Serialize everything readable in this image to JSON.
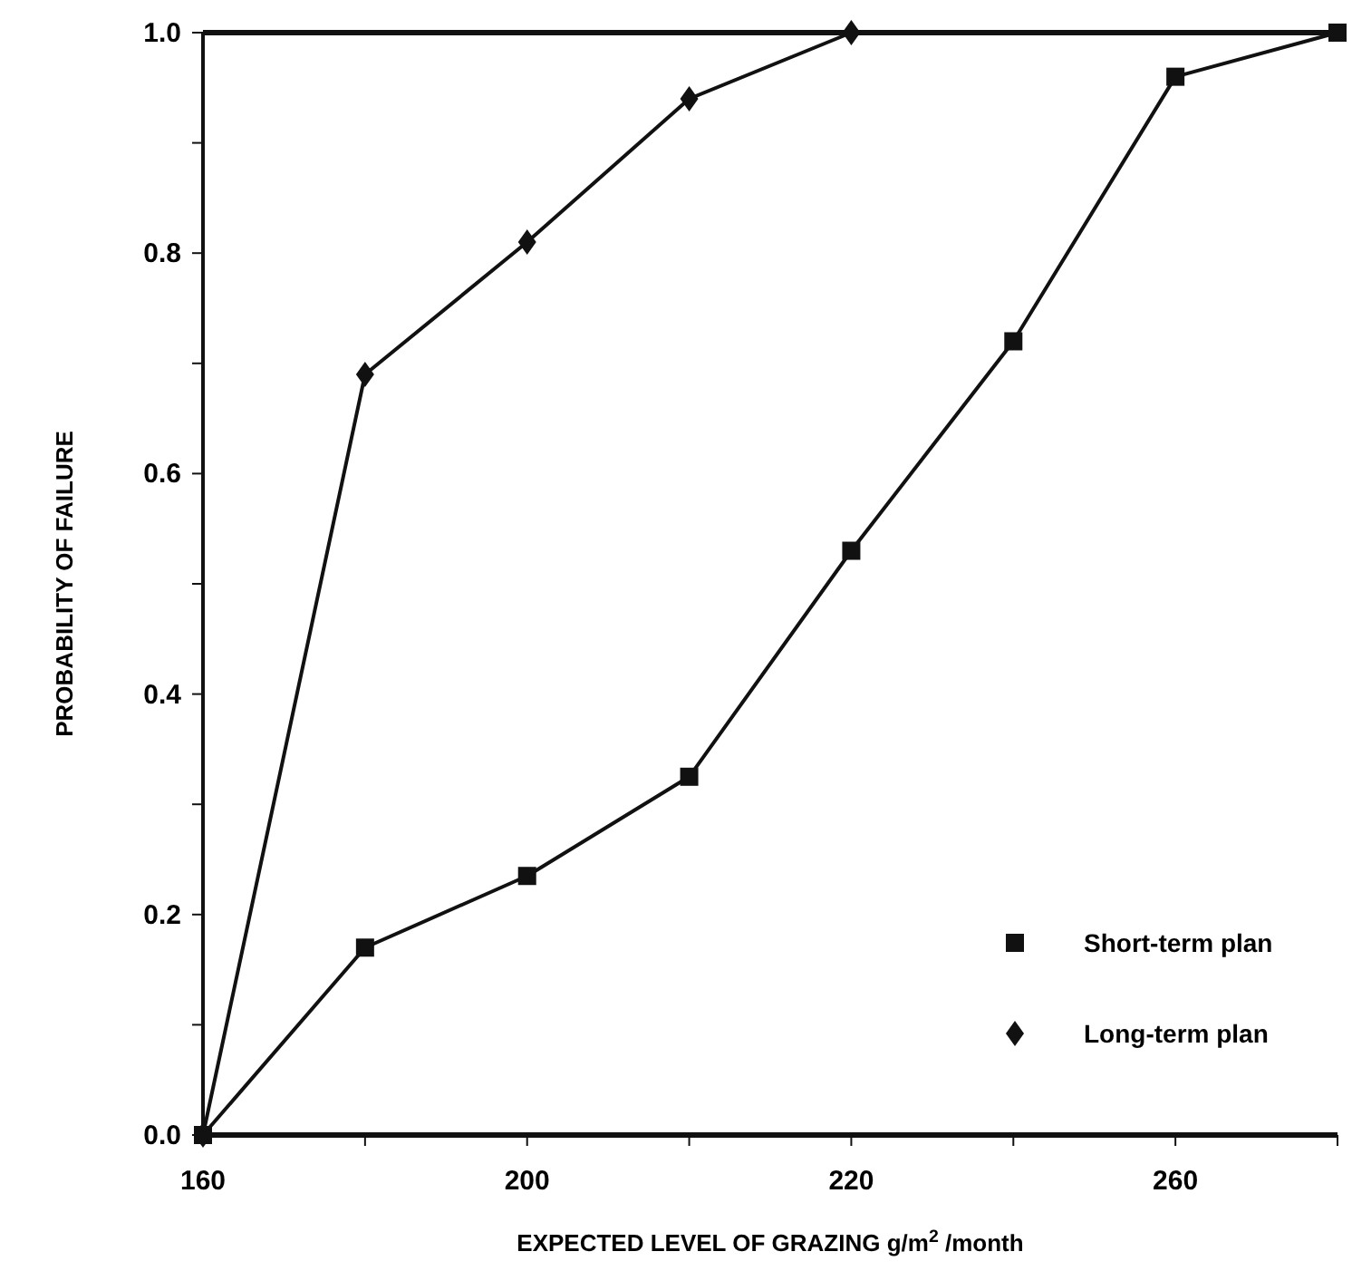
{
  "chart_data": {
    "type": "line",
    "xlabel": "EXPECTED LEVEL OF GRAZING  g/m$^{2}$ /month",
    "ylabel": "PROBABILITY OF FAILURE",
    "categories": [
      "160",
      null,
      "200",
      null,
      "220",
      null,
      "260",
      null
    ],
    "ylim": [
      0,
      1
    ],
    "yticks": [
      {
        "value": 0,
        "label": "0.0"
      },
      {
        "value": 0.1,
        "label": null
      },
      {
        "value": 0.2,
        "label": "0.2"
      },
      {
        "value": 0.3,
        "label": null
      },
      {
        "value": 0.4,
        "label": "0.4"
      },
      {
        "value": 0.5,
        "label": null
      },
      {
        "value": 0.6,
        "label": "0.6"
      },
      {
        "value": 0.7,
        "label": null
      },
      {
        "value": 0.8,
        "label": "0.8"
      },
      {
        "value": 0.9,
        "label": null
      },
      {
        "value": 1,
        "label": "1.0"
      }
    ],
    "legend": "bottom right",
    "grid": false,
    "series": [
      {
        "name": "Short-term plan",
        "color": "#111111",
        "marker": "square",
        "values": [
          0,
          0.17,
          0.235,
          0.325,
          0.53,
          0.72,
          0.96,
          1.0
        ]
      },
      {
        "name": "Long-term plan",
        "color": "#111111",
        "marker": "diamond",
        "values": [
          0,
          0.69,
          0.81,
          0.94,
          1.0,
          null,
          null,
          null
        ]
      }
    ]
  }
}
